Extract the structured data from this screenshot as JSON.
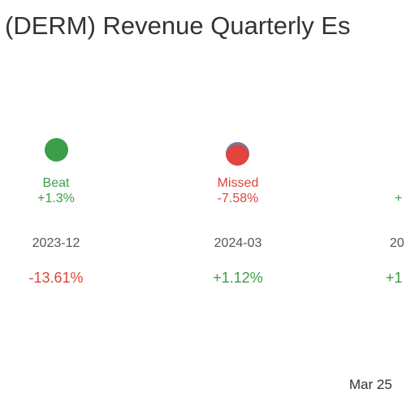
{
  "header": {
    "title": "(DERM) Revenue Quarterly Es"
  },
  "columns": [
    {
      "status": "Beat",
      "surprise": "+1.3%",
      "period": "2023-12",
      "change": "-13.61%"
    },
    {
      "status": "Missed",
      "surprise": "-7.58%",
      "period": "2024-03",
      "change": "+1.12%"
    },
    {
      "surprise": "+",
      "period": "20",
      "change": "+1"
    }
  ],
  "footer": {
    "date": "Mar 25"
  }
}
